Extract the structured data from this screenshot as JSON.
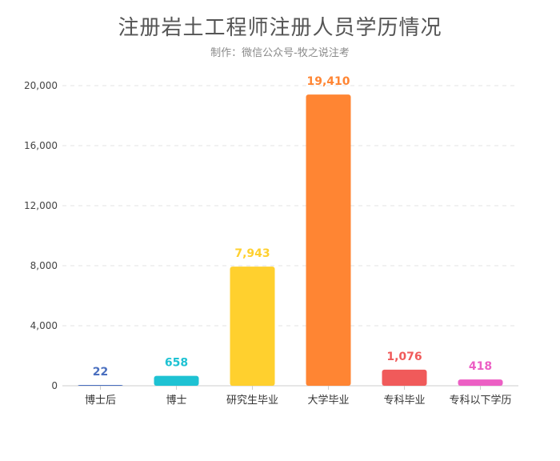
{
  "chart_data": {
    "type": "bar",
    "title": "注册岩土工程师注册人员学历情况",
    "subtitle": "制作：微信公众号-牧之说注考",
    "categories": [
      "博士后",
      "博士",
      "研究生毕业",
      "大学毕业",
      "专科毕业",
      "专科以下学历"
    ],
    "values": [
      22,
      658,
      7943,
      19410,
      1076,
      418
    ],
    "value_labels": [
      "22",
      "658",
      "7,943",
      "19,410",
      "1,076",
      "418"
    ],
    "colors": [
      "#4a6fbf",
      "#1ec2d3",
      "#ffd02e",
      "#ff8533",
      "#f05a5a",
      "#ec5fc4"
    ],
    "ylim": [
      0,
      20000
    ],
    "yticks": [
      0,
      4000,
      8000,
      12000,
      16000,
      20000
    ],
    "ytick_labels": [
      "0",
      "4,000",
      "8,000",
      "12,000",
      "16,000",
      "20,000"
    ],
    "grid": true,
    "xlabel": "",
    "ylabel": ""
  }
}
